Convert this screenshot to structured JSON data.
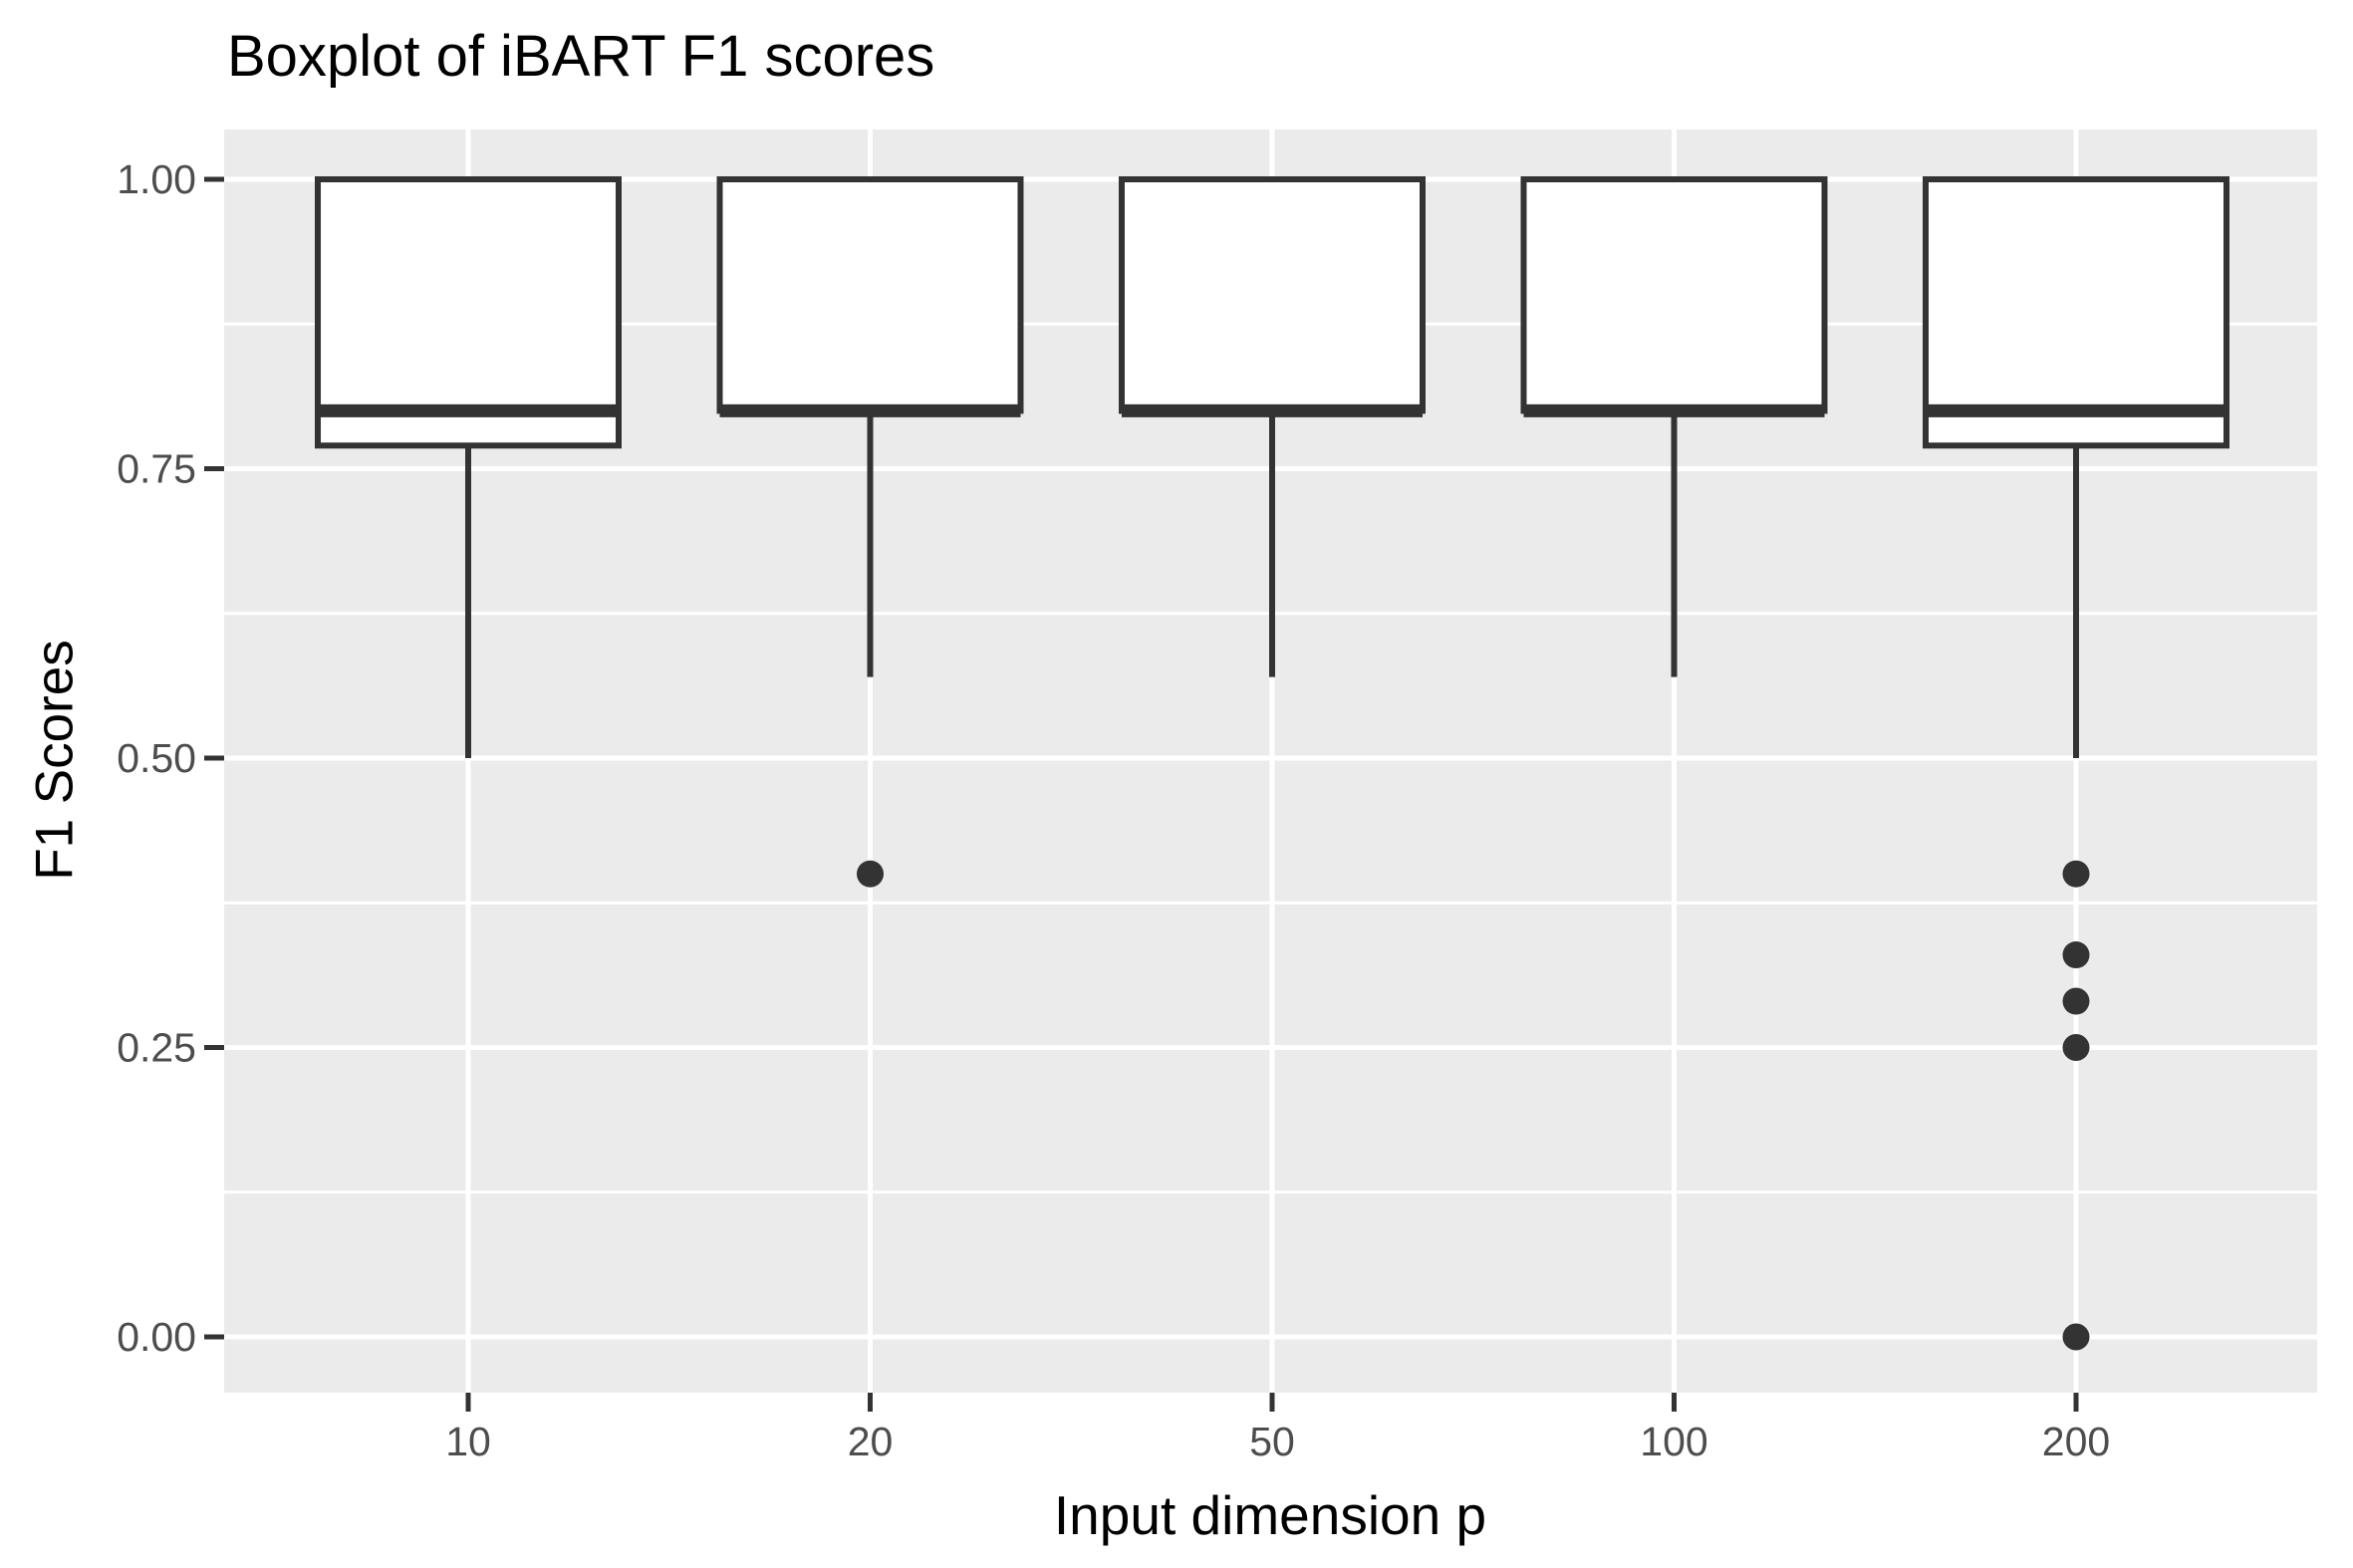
{
  "chart_data": {
    "type": "boxplot",
    "title": "Boxplot of iBART F1 scores",
    "xlabel": "Input dimension p",
    "ylabel": "F1 Scores",
    "categories": [
      "10",
      "20",
      "50",
      "100",
      "200"
    ],
    "boxes": [
      {
        "category": "10",
        "whisker_low": 0.5,
        "q1": 0.77,
        "median": 0.8,
        "q3": 1.0,
        "whisker_high": 1.0,
        "outliers": []
      },
      {
        "category": "20",
        "whisker_low": 0.57,
        "q1": 0.8,
        "median": 0.8,
        "q3": 1.0,
        "whisker_high": 1.0,
        "outliers": [
          0.4
        ]
      },
      {
        "category": "50",
        "whisker_low": 0.57,
        "q1": 0.8,
        "median": 0.8,
        "q3": 1.0,
        "whisker_high": 1.0,
        "outliers": []
      },
      {
        "category": "100",
        "whisker_low": 0.57,
        "q1": 0.8,
        "median": 0.8,
        "q3": 1.0,
        "whisker_high": 1.0,
        "outliers": []
      },
      {
        "category": "200",
        "whisker_low": 0.5,
        "q1": 0.77,
        "median": 0.8,
        "q3": 1.0,
        "whisker_high": 1.0,
        "outliers": [
          0.4,
          0.33,
          0.29,
          0.25,
          0.0
        ]
      }
    ],
    "y_ticks": [
      {
        "value": 0.0,
        "label": "0.00"
      },
      {
        "value": 0.25,
        "label": "0.25"
      },
      {
        "value": 0.5,
        "label": "0.50"
      },
      {
        "value": 0.75,
        "label": "0.75"
      },
      {
        "value": 1.0,
        "label": "1.00"
      }
    ],
    "y_minor": [
      0.125,
      0.375,
      0.625,
      0.875
    ],
    "ylim": [
      0,
      1
    ],
    "grid": "horizontal major+minor, vertical major at categories",
    "legend": "none",
    "colors": {
      "panel_bg": "#EBEBEB",
      "gridline": "#FFFFFF",
      "box_stroke": "#333333",
      "box_fill": "#FFFFFF",
      "outlier": "#333333",
      "tick_mark": "#333333",
      "tick_label": "#4D4D4D",
      "title_text": "#000000"
    }
  }
}
